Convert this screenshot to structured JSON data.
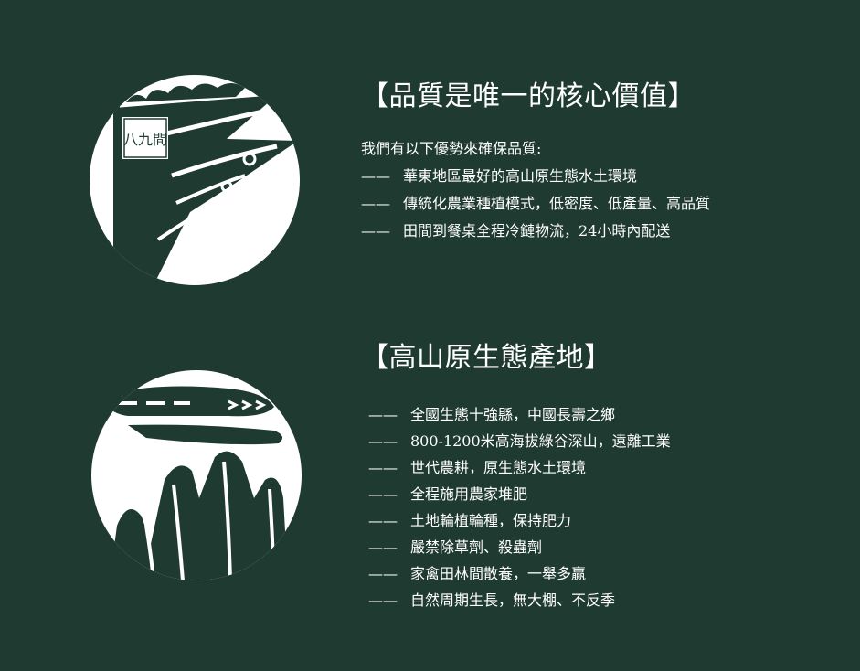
{
  "colors": {
    "background": "#1f3a30",
    "emblem": "#ffffff",
    "text": "#ffffff"
  },
  "emblems": [
    {
      "icon": "flag-logo-icon",
      "logo_text": "八九間"
    },
    {
      "icon": "mountain-cloud-icon"
    }
  ],
  "quality": {
    "title": "【品質是唯一的核心價值】",
    "intro": "我們有以下優勢來確保品質:",
    "dash": "——",
    "items": [
      "華東地區最好的高山原生態水土環境",
      "傳統化農業種植模式，低密度、低產量、高品質",
      "田間到餐桌全程冷鏈物流，24小時內配送"
    ]
  },
  "origin": {
    "title": "【高山原生態產地】",
    "dash": "——",
    "items": [
      "全國生態十強縣，中國長壽之鄉",
      "800-1200米高海拔綠谷深山，遠離工業",
      "世代農耕，原生態水土環境",
      "全程施用農家堆肥",
      "土地輪植輪種，保持肥力",
      "嚴禁除草劑、殺蟲劑",
      "家禽田林間散養，一舉多贏",
      "自然周期生長，無大棚、不反季"
    ]
  }
}
